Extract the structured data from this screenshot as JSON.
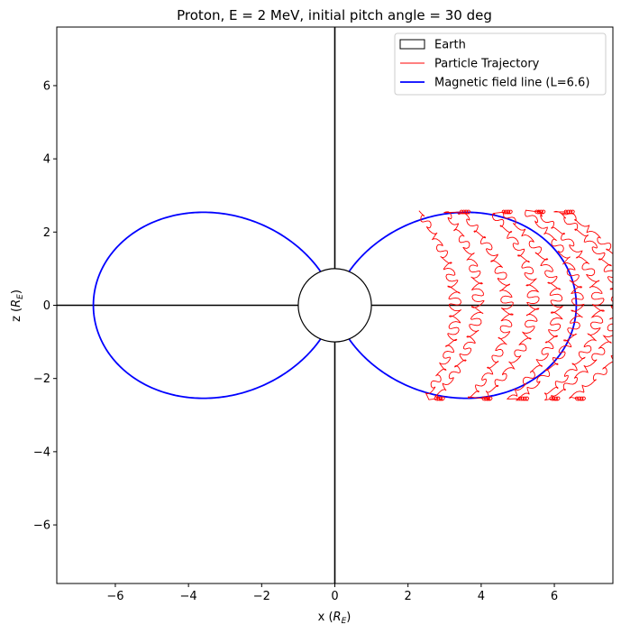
{
  "chart_data": {
    "type": "line",
    "title": "Proton, E = 2 MeV, initial pitch angle = 30 deg",
    "xlabel": "x (",
    "xlabel_sub": "R",
    "xlabel_subscript": "E",
    "xlabel_end": ")",
    "ylabel": "z (",
    "ylabel_sub": "R",
    "ylabel_subscript": "E",
    "ylabel_end": ")",
    "xlim": [
      -7.6,
      7.6
    ],
    "ylim": [
      -7.6,
      7.6
    ],
    "xticks": [
      -6,
      -4,
      -2,
      0,
      2,
      4,
      6
    ],
    "yticks": [
      -6,
      -4,
      -2,
      0,
      2,
      4,
      6
    ],
    "xtick_labels": [
      "−6",
      "−4",
      "−2",
      "0",
      "2",
      "4",
      "6"
    ],
    "ytick_labels": [
      "−6",
      "−4",
      "−2",
      "0",
      "2",
      "4",
      "6"
    ],
    "legend_position": "top-right",
    "legend": [
      {
        "label": "Earth",
        "kind": "patch",
        "color": "#000000",
        "fill": "#ffffff"
      },
      {
        "label": "Particle Trajectory",
        "kind": "line",
        "color": "#ff0000"
      },
      {
        "label": "Magnetic field line (L=6.6)",
        "kind": "line",
        "color": "#0000ff"
      }
    ],
    "earth": {
      "center": [
        0,
        0
      ],
      "radius": 1.0
    },
    "field_line": {
      "L": 6.6,
      "color": "#0000ff"
    },
    "trajectory": {
      "color": "#ff0000",
      "bounce_latitude_deg": 23,
      "bounce_positions_x": [
        2.3,
        2.75,
        3.45,
        4.05,
        4.6,
        5.05,
        5.5,
        5.9,
        6.3,
        6.6
      ],
      "z_extent": [
        -2.55,
        2.55
      ]
    }
  }
}
